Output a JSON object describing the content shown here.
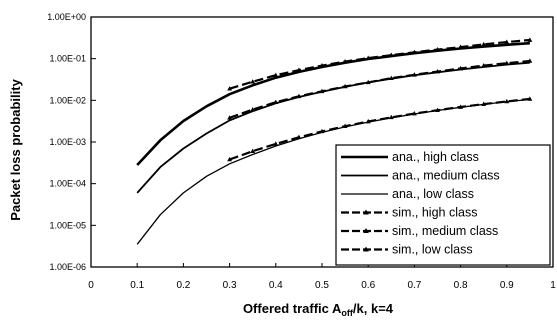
{
  "chart_data": {
    "type": "line",
    "title": "",
    "xlabel": "Offered traffic A",
    "xlabel_sub": "off",
    "xlabel_suffix": "/k, k=4",
    "ylabel": "Packet loss probability",
    "xlim": [
      0,
      1
    ],
    "ylim": [
      1e-06,
      1
    ],
    "yscale": "log",
    "grid": false,
    "legend_position": "lower-right",
    "x_ticks": [
      "0",
      "0.1",
      "0.2",
      "0.3",
      "0.4",
      "0.5",
      "0.6",
      "0.7",
      "0.8",
      "0.9",
      "1"
    ],
    "y_ticks": [
      "1.00E-06",
      "1.00E-05",
      "1.00E-04",
      "1.00E-03",
      "1.00E-02",
      "1.00E-01",
      "1.00E+00"
    ],
    "series": [
      {
        "name": "ana., high class",
        "style": "solid-thick",
        "x": [
          0.1,
          0.15,
          0.2,
          0.25,
          0.3,
          0.35,
          0.4,
          0.45,
          0.5,
          0.55,
          0.6,
          0.65,
          0.7,
          0.75,
          0.8,
          0.85,
          0.9,
          0.95
        ],
        "y": [
          0.00028,
          0.0011,
          0.0032,
          0.0072,
          0.014,
          0.023,
          0.035,
          0.048,
          0.063,
          0.08,
          0.098,
          0.115,
          0.135,
          0.155,
          0.175,
          0.195,
          0.215,
          0.235
        ]
      },
      {
        "name": "ana., medium class",
        "style": "solid",
        "x": [
          0.1,
          0.15,
          0.2,
          0.25,
          0.3,
          0.35,
          0.4,
          0.45,
          0.5,
          0.55,
          0.6,
          0.65,
          0.7,
          0.75,
          0.8,
          0.85,
          0.9,
          0.95
        ],
        "y": [
          6e-05,
          0.00025,
          0.0007,
          0.0016,
          0.0033,
          0.0055,
          0.0085,
          0.012,
          0.016,
          0.021,
          0.027,
          0.033,
          0.04,
          0.047,
          0.055,
          0.063,
          0.072,
          0.08
        ]
      },
      {
        "name": "ana., low class",
        "style": "solid-thin",
        "x": [
          0.1,
          0.15,
          0.2,
          0.25,
          0.3,
          0.35,
          0.4,
          0.45,
          0.5,
          0.55,
          0.6,
          0.65,
          0.7,
          0.75,
          0.8,
          0.85,
          0.9,
          0.95
        ],
        "y": [
          3.5e-06,
          1.8e-05,
          6e-05,
          0.00015,
          0.0003,
          0.0005,
          0.0008,
          0.0012,
          0.0017,
          0.0023,
          0.003,
          0.0038,
          0.0047,
          0.0057,
          0.0068,
          0.008,
          0.0093,
          0.0105
        ]
      },
      {
        "name": "sim., high class",
        "style": "dashed-marker",
        "x": [
          0.3,
          0.35,
          0.4,
          0.45,
          0.5,
          0.55,
          0.6,
          0.65,
          0.7,
          0.75,
          0.8,
          0.85,
          0.9,
          0.95
        ],
        "y": [
          0.019,
          0.028,
          0.04,
          0.053,
          0.068,
          0.085,
          0.103,
          0.122,
          0.142,
          0.165,
          0.19,
          0.22,
          0.25,
          0.28
        ]
      },
      {
        "name": "sim., medium class",
        "style": "dashed-marker",
        "x": [
          0.3,
          0.35,
          0.4,
          0.45,
          0.5,
          0.55,
          0.6,
          0.65,
          0.7,
          0.75,
          0.8,
          0.85,
          0.9,
          0.95
        ],
        "y": [
          0.0038,
          0.006,
          0.009,
          0.0125,
          0.0165,
          0.0215,
          0.027,
          0.034,
          0.041,
          0.049,
          0.058,
          0.068,
          0.078,
          0.088
        ]
      },
      {
        "name": "sim., low class",
        "style": "dashed-marker",
        "x": [
          0.3,
          0.35,
          0.4,
          0.45,
          0.5,
          0.55,
          0.6,
          0.65,
          0.7,
          0.75,
          0.8,
          0.85,
          0.9,
          0.95
        ],
        "y": [
          0.00038,
          0.0006,
          0.0009,
          0.0013,
          0.0018,
          0.0024,
          0.0031,
          0.0039,
          0.0048,
          0.0058,
          0.0069,
          0.0081,
          0.0094,
          0.0108
        ]
      }
    ]
  }
}
